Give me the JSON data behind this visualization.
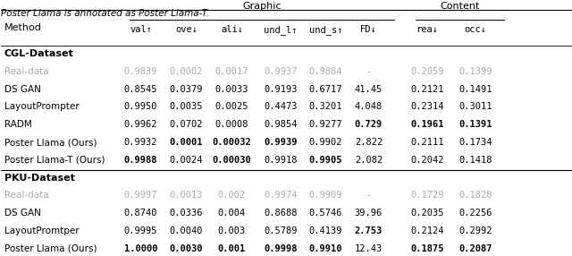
{
  "title_line": "Poster Llama is annotated as Poster Llama-T.",
  "graphic_header": "Graphic",
  "content_header": "Content",
  "col_headers": [
    "val↑",
    "ove↓",
    "ali↓",
    "und_l↑",
    "und_s↑",
    "FD↓",
    "rea↓",
    "occ↓"
  ],
  "method_col": "Method",
  "sections": [
    {
      "section_label": "CGL-Dataset",
      "rows": [
        {
          "method": "Real-data",
          "values": [
            "0.9839",
            "0.0002",
            "0.0017",
            "0.9937",
            "0.9884",
            "-",
            "0.2059",
            "0.1399"
          ],
          "bold": [
            false,
            false,
            false,
            false,
            false,
            false,
            false,
            false
          ],
          "gray": true
        },
        {
          "method": "DS GAN",
          "values": [
            "0.8545",
            "0.0379",
            "0.0033",
            "0.9193",
            "0.6717",
            "41.45",
            "0.2121",
            "0.1491"
          ],
          "bold": [
            false,
            false,
            false,
            false,
            false,
            false,
            false,
            false
          ],
          "gray": false
        },
        {
          "method": "LayoutPrompter",
          "values": [
            "0.9950",
            "0.0035",
            "0.0025",
            "0.4473",
            "0.3201",
            "4.048",
            "0.2314",
            "0.3011"
          ],
          "bold": [
            false,
            false,
            false,
            false,
            false,
            false,
            false,
            false
          ],
          "gray": false
        },
        {
          "method": "RADM",
          "values": [
            "0.9962",
            "0.0702",
            "0.0008",
            "0.9854",
            "0.9277",
            "0.729",
            "0.1961",
            "0.1391"
          ],
          "bold": [
            false,
            false,
            false,
            false,
            false,
            true,
            true,
            true
          ],
          "gray": false
        },
        {
          "method": "Poster Llama (Ours)",
          "values": [
            "0.9932",
            "0.0001",
            "0.00032",
            "0.9939",
            "0.9902",
            "2.822",
            "0.2111",
            "0.1734"
          ],
          "bold": [
            false,
            true,
            true,
            true,
            false,
            false,
            false,
            false
          ],
          "gray": false
        },
        {
          "method": "Poster Llama-T (Ours)",
          "values": [
            "0.9988",
            "0.0024",
            "0.00030",
            "0.9918",
            "0.9905",
            "2.082",
            "0.2042",
            "0.1418"
          ],
          "bold": [
            true,
            false,
            true,
            false,
            true,
            false,
            false,
            false
          ],
          "gray": false
        }
      ]
    },
    {
      "section_label": "PKU-Dataset",
      "rows": [
        {
          "method": "Real-data",
          "values": [
            "0.9997",
            "0.0013",
            "0.002",
            "0.9974",
            "0.9909",
            "-",
            "0.1729",
            "0.1828"
          ],
          "bold": [
            false,
            false,
            false,
            false,
            false,
            false,
            false,
            false
          ],
          "gray": true
        },
        {
          "method": "DS GAN",
          "values": [
            "0.8740",
            "0.0336",
            "0.004",
            "0.8688",
            "0.5746",
            "39.96",
            "0.2035",
            "0.2256"
          ],
          "bold": [
            false,
            false,
            false,
            false,
            false,
            false,
            false,
            false
          ],
          "gray": false
        },
        {
          "method": "LayoutPromtper",
          "values": [
            "0.9995",
            "0.0040",
            "0.003",
            "0.5789",
            "0.4139",
            "2.753",
            "0.2124",
            "0.2992"
          ],
          "bold": [
            false,
            false,
            false,
            false,
            false,
            true,
            false,
            false
          ],
          "gray": false
        },
        {
          "method": "Poster Llama (Ours)",
          "values": [
            "1.0000",
            "0.0030",
            "0.001",
            "0.9998",
            "0.9910",
            "12.43",
            "0.1875",
            "0.2087"
          ],
          "bold": [
            true,
            true,
            true,
            true,
            true,
            false,
            true,
            true
          ],
          "gray": false
        }
      ]
    }
  ]
}
